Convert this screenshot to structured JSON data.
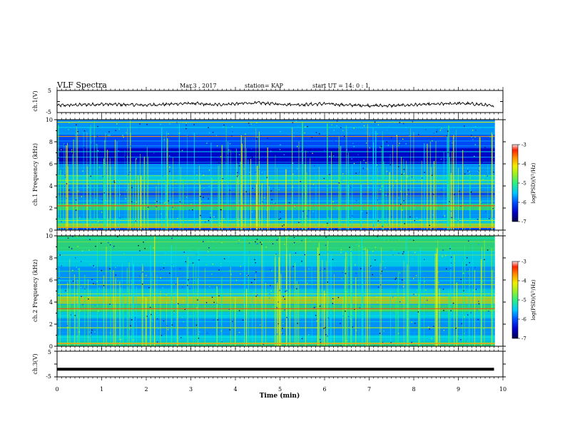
{
  "header": {
    "title": "VLF Spectra",
    "date": "Mar.3 , 2017",
    "station": "station= KAP",
    "start": "start UT = 14: 0 : 1"
  },
  "colors": {
    "colormap": [
      "#00004a",
      "#0000c8",
      "#0050ff",
      "#00a8ff",
      "#00e8e8",
      "#30f070",
      "#a8f020",
      "#f0f000",
      "#ffa000",
      "#ff3000",
      "#d80000"
    ]
  },
  "chart_data": [
    {
      "type": "line",
      "name": "ch1-voltage",
      "ylabel": "ch.1(V)",
      "ylim": [
        -5,
        5
      ],
      "yticks": [
        "5",
        "-5"
      ],
      "x_minutes": [
        0,
        0.5,
        1,
        1.5,
        2,
        2.5,
        3,
        3.5,
        4,
        4.5,
        5,
        5.5,
        6,
        6.5,
        7,
        7.5,
        8,
        8.5,
        9,
        9.5,
        9.8
      ],
      "y_volts": [
        -1.8,
        -1.5,
        -1.2,
        -1.4,
        -1.6,
        -1.2,
        -0.8,
        -1.5,
        -1.0,
        -0.6,
        -1.2,
        -1.4,
        -1.0,
        -1.6,
        -1.8,
        -1.9,
        -1.5,
        -1.2,
        -0.8,
        -1.3,
        -2.2
      ]
    },
    {
      "type": "heatmap",
      "name": "ch1-spectrogram",
      "ylabel": "ch.1 Frequency (kHz)",
      "ylim": [
        0,
        10
      ],
      "yticks": [
        "0",
        "2",
        "4",
        "6",
        "8",
        "10"
      ],
      "colorbar": {
        "label": "log(PSD)(V²/Hz)",
        "range": [
          -7,
          -3
        ],
        "ticks": [
          "-3",
          "-4",
          "-5",
          "-6",
          "-7"
        ]
      }
    },
    {
      "type": "heatmap",
      "name": "ch2-spectrogram",
      "ylabel": "ch.2 Frequency (kHz)",
      "ylim": [
        0,
        10
      ],
      "yticks": [
        "0",
        "2",
        "4",
        "6",
        "8",
        "10"
      ],
      "colorbar": {
        "label": "log(PSD)(V²/Hz)",
        "range": [
          -7,
          -3
        ],
        "ticks": [
          "-3",
          "-4",
          "-5",
          "-6",
          "-7"
        ]
      }
    },
    {
      "type": "line",
      "name": "ch3-voltage",
      "ylabel": "ch.3(V)",
      "ylim": [
        -5,
        5
      ],
      "yticks": [
        "5",
        "-5"
      ],
      "x_minutes": [
        0,
        9.8
      ],
      "y_volts": [
        -2,
        -2
      ]
    }
  ],
  "xaxis": {
    "label": "Time (min)",
    "xlim": [
      0,
      10
    ],
    "ticks": [
      "0",
      "1",
      "2",
      "3",
      "4",
      "5",
      "6",
      "7",
      "8",
      "9",
      "10"
    ]
  }
}
